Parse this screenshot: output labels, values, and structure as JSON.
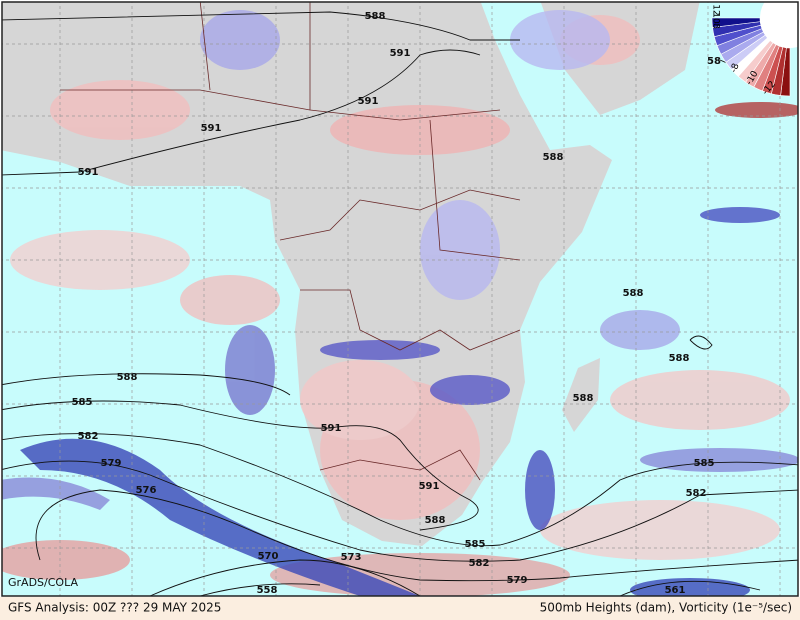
{
  "map": {
    "credit": "GrADS/COLA",
    "footer_left": "GFS Analysis: 00Z ??? 29 MAY 2025",
    "footer_right": "500mb Heights (dam), Vorticity (1e⁻⁵/sec)",
    "colorbar_labels": [
      "12",
      "10",
      "8",
      "-8",
      "-10",
      "-12"
    ],
    "contour_labels": [
      "588",
      "591",
      "591",
      "591",
      "591",
      "588",
      "588",
      "588",
      "588",
      "588",
      "585",
      "582",
      "579",
      "576",
      "591",
      "591",
      "588",
      "585",
      "582",
      "579",
      "573",
      "570",
      "558",
      "585",
      "582",
      "561",
      "58"
    ]
  }
}
